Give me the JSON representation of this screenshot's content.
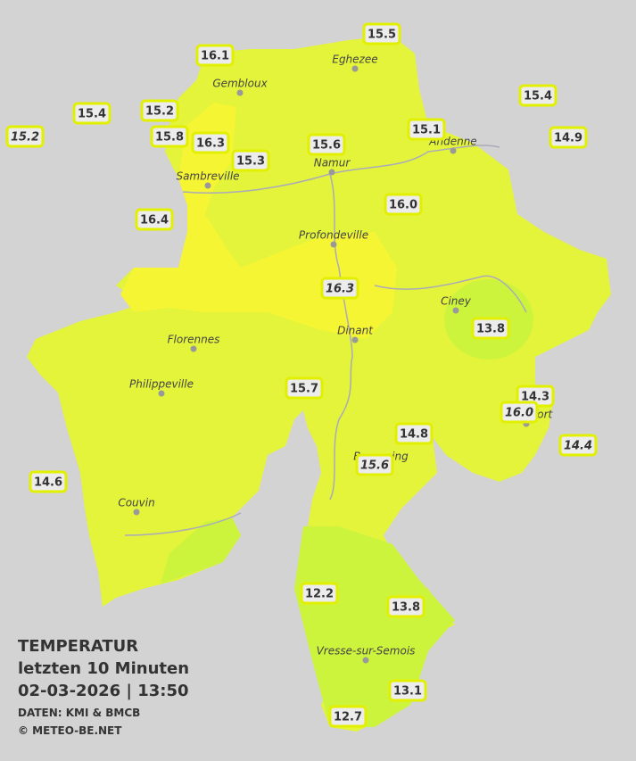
{
  "title": {
    "line1": "TEMPERATUR",
    "line2": "letzten 10 Minuten",
    "line3": "02-03-2026  |  13:50",
    "source": "DATEN: KMI & BMCB",
    "credit": "© METEO-BE.NET"
  },
  "cities": [
    "Eghezee",
    "Gembloux",
    "Andenne",
    "Namur",
    "Sambreville",
    "Profondeville",
    "Ciney",
    "Florennes",
    "Dinant",
    "Philippeville",
    "Beauraing",
    "Rochefort",
    "Couvin",
    "Vresse-sur-Semois"
  ],
  "stations": [
    {
      "text": "15.5",
      "italic": false
    },
    {
      "text": "16.1",
      "italic": false
    },
    {
      "text": "15.4",
      "italic": false
    },
    {
      "text": "15.4",
      "italic": false
    },
    {
      "text": "15.2",
      "italic": false
    },
    {
      "text": "15.2",
      "italic": true
    },
    {
      "text": "15.8",
      "italic": false
    },
    {
      "text": "16.3",
      "italic": false
    },
    {
      "text": "15.6",
      "italic": false
    },
    {
      "text": "15.1",
      "italic": false
    },
    {
      "text": "14.9",
      "italic": false
    },
    {
      "text": "15.3",
      "italic": false
    },
    {
      "text": "16.0",
      "italic": false
    },
    {
      "text": "16.4",
      "italic": false
    },
    {
      "text": "16.3",
      "italic": true
    },
    {
      "text": "13.8",
      "italic": false
    },
    {
      "text": "15.7",
      "italic": false
    },
    {
      "text": "14.3",
      "italic": false
    },
    {
      "text": "16.0",
      "italic": true
    },
    {
      "text": "14.4",
      "italic": true
    },
    {
      "text": "14.8",
      "italic": false
    },
    {
      "text": "15.6",
      "italic": true
    },
    {
      "text": "14.6",
      "italic": false
    },
    {
      "text": "12.2",
      "italic": false
    },
    {
      "text": "13.8",
      "italic": false
    },
    {
      "text": "13.1",
      "italic": false
    },
    {
      "text": "12.7",
      "italic": false
    }
  ]
}
